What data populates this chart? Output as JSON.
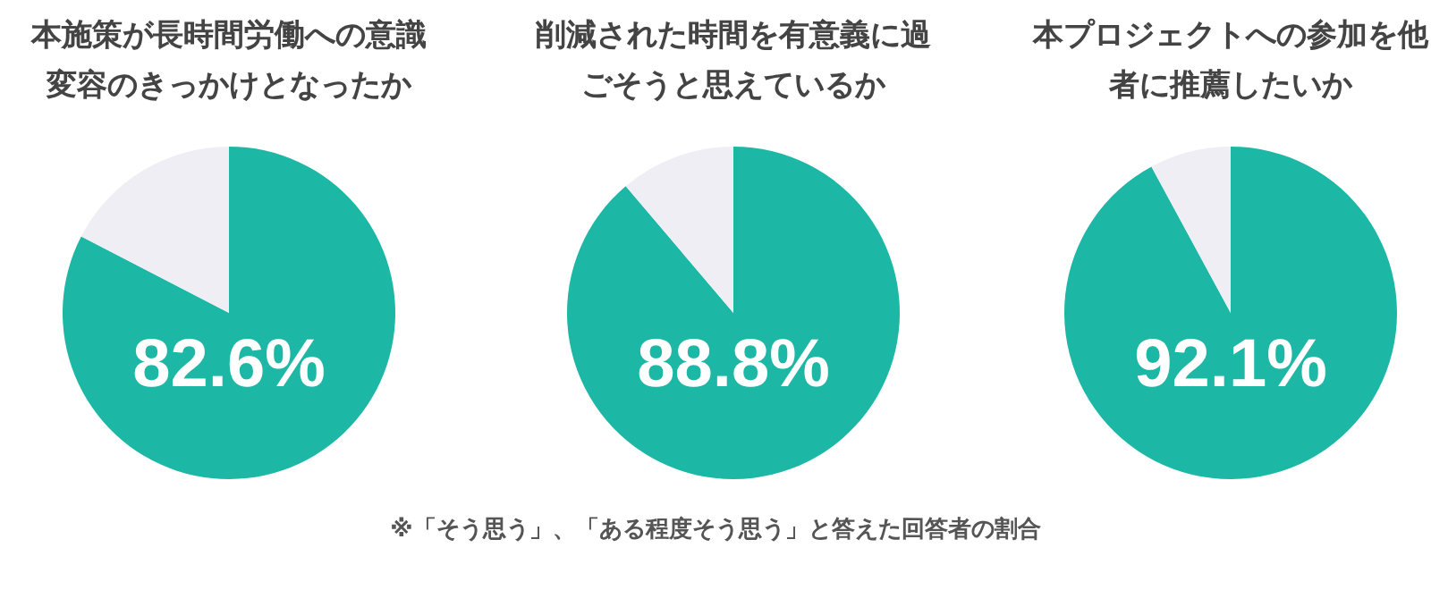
{
  "chart_data": [
    {
      "type": "pie",
      "title": "本施策が長時間労働への意識変容のきっかけとなったか",
      "categories": [
        null,
        null
      ],
      "values": [
        82.6,
        17.4
      ],
      "colors": [
        "#1cb8a5",
        "#eeeef4"
      ],
      "value_labels": [
        "82.6%",
        null
      ]
    },
    {
      "type": "pie",
      "title": "削減された時間を有意義に過ごそうと思えているか",
      "categories": [
        null,
        null
      ],
      "values": [
        88.8,
        11.2
      ],
      "colors": [
        "#1cb8a5",
        "#eeeef4"
      ],
      "value_labels": [
        "88.8%",
        null
      ],
      "annotations": [
        "※「そう思う」、「ある程度そう思う」と答えた回答者の割合"
      ]
    },
    {
      "type": "pie",
      "title": "本プロジェクトへの参加を他者に推薦したいか",
      "categories": [
        null,
        null
      ],
      "values": [
        92.1,
        7.9
      ],
      "colors": [
        "#1cb8a5",
        "#eeeef4"
      ],
      "value_labels": [
        "92.1%",
        null
      ]
    }
  ]
}
